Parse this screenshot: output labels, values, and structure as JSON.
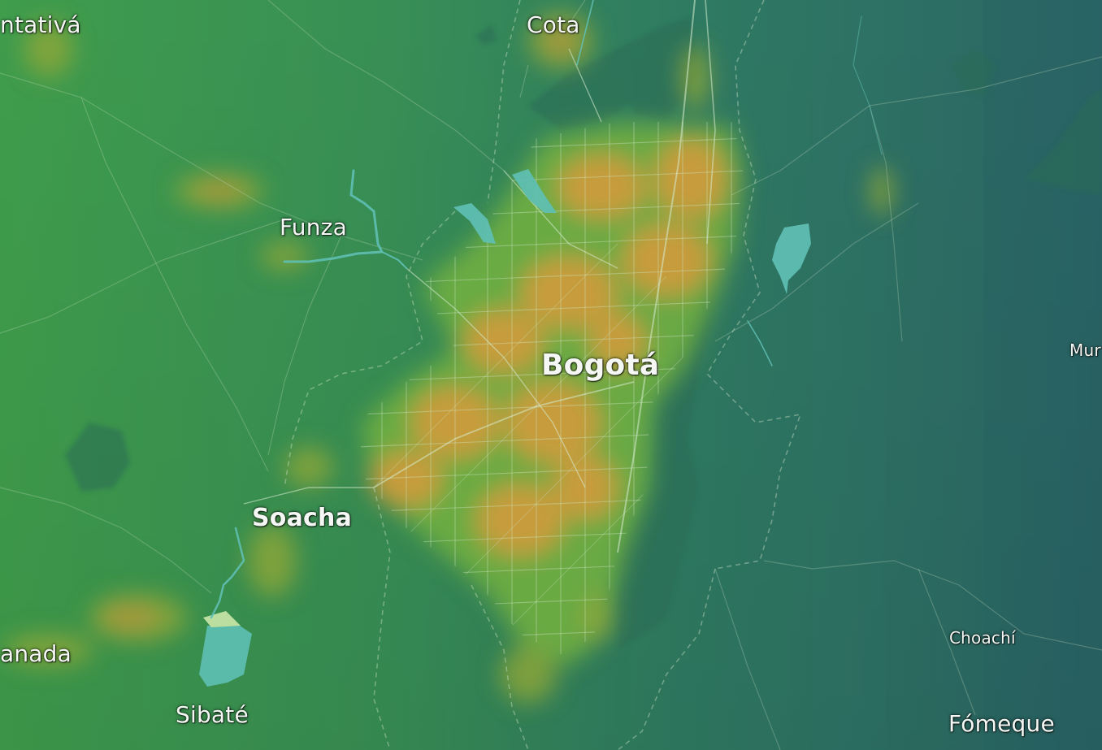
{
  "map": {
    "colors": {
      "base_west": "#3c9a4e",
      "base_east": "#2a6a66",
      "urban_core": "#d8a03c",
      "urban_mid": "#7fb13c",
      "water": "#5fbfb4",
      "roads": "#cfe7c8",
      "terrain_shade": "#2c6c57"
    },
    "places": [
      {
        "id": "facatativa",
        "name": "ntativá"
      },
      {
        "id": "cota",
        "name": "Cota"
      },
      {
        "id": "funza",
        "name": "Funza"
      },
      {
        "id": "bogota",
        "name": "Bogotá"
      },
      {
        "id": "soacha",
        "name": "Soacha"
      },
      {
        "id": "granada",
        "name": "anada"
      },
      {
        "id": "sibate",
        "name": "Sibaté"
      },
      {
        "id": "choachi",
        "name": "Choachí"
      },
      {
        "id": "fomeque",
        "name": "Fómeque"
      },
      {
        "id": "mun",
        "name": "Mur"
      }
    ]
  }
}
